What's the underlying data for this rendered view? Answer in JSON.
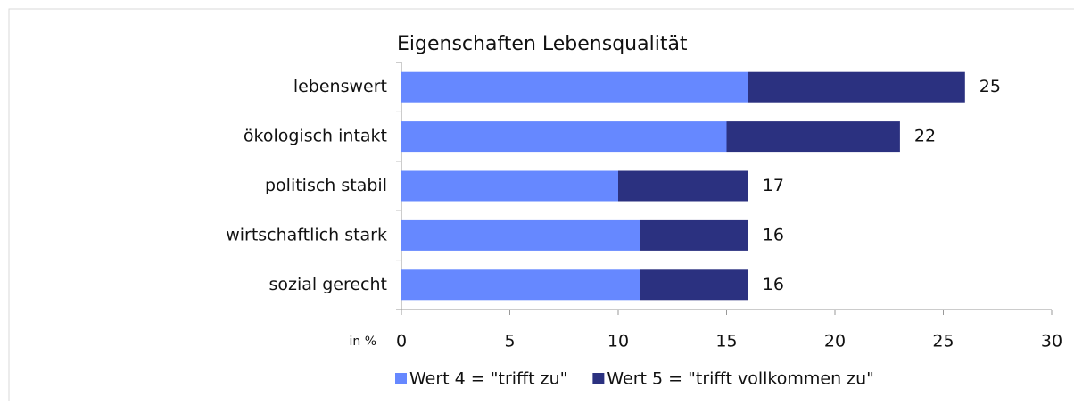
{
  "chart_data": {
    "type": "stacked_barh",
    "title": "Eigenschaften Lebensqualität",
    "categories": [
      "lebenswert",
      "ökologisch intakt",
      "politisch stabil",
      "wirtschaftlich stark",
      "sozial gerecht"
    ],
    "series": [
      {
        "name": "Wert 4 = \"trifft zu\"",
        "color": "#6688ff",
        "values": [
          16,
          15,
          10,
          11,
          11
        ]
      },
      {
        "name": "Wert 5 = \"trifft vollkommen zu\"",
        "color": "#2b3180",
        "values": [
          10,
          8,
          6,
          5,
          5
        ]
      }
    ],
    "total_labels": [
      25,
      22,
      17,
      16,
      16
    ],
    "x_axis_label": "in %",
    "xlim": [
      0,
      30
    ],
    "xticks": [
      0,
      5,
      10,
      15,
      20,
      25,
      30
    ],
    "grid": false,
    "legend": "bottom"
  }
}
